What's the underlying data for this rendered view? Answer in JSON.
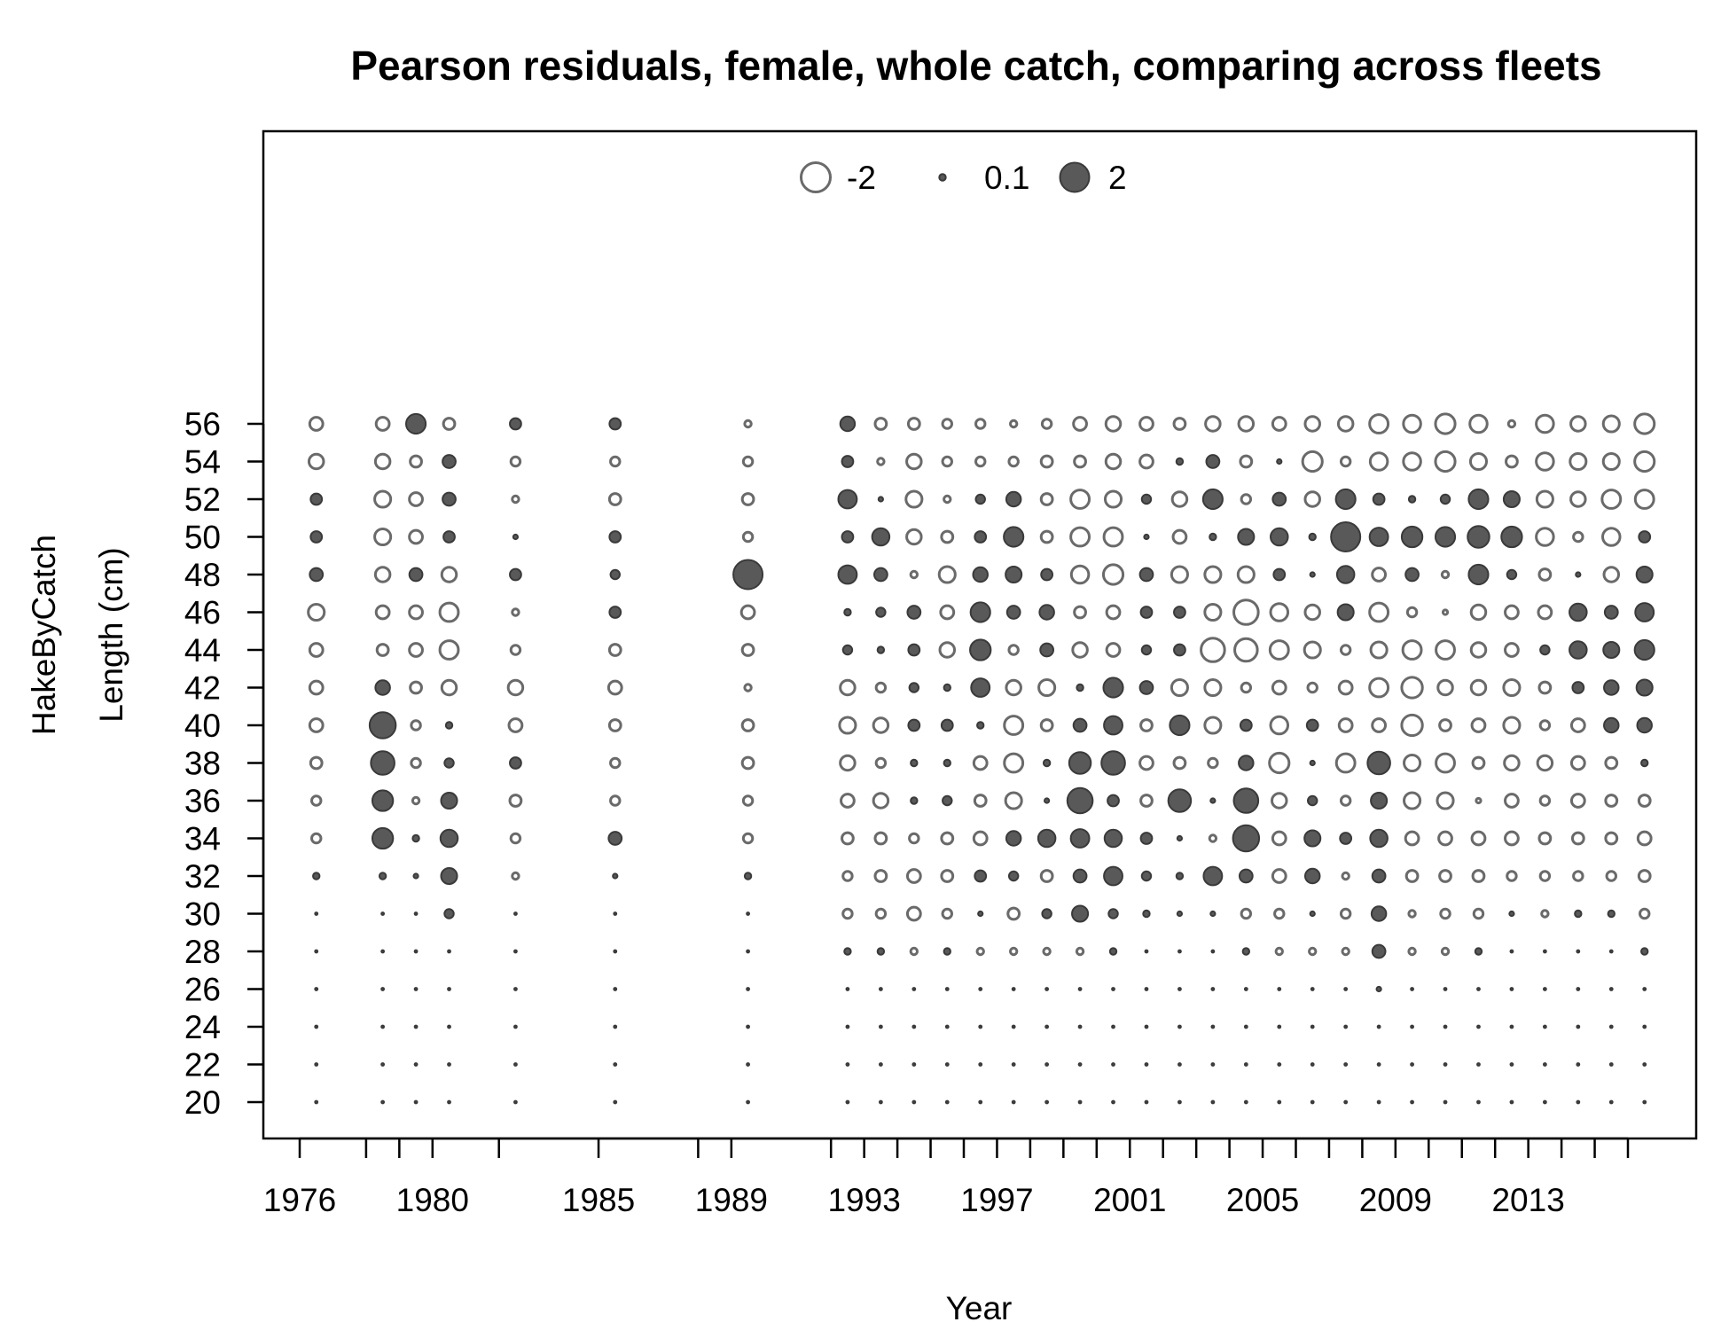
{
  "chart_data": {
    "type": "scatter",
    "subtype": "bubble",
    "title": "Pearson residuals, female, whole catch, comparing across fleets",
    "xlabel": "Year",
    "ylabel_lines": [
      "HakeByCatch",
      "Length (cm)"
    ],
    "xlim": [
      1976,
      2016
    ],
    "ylim": [
      20,
      56
    ],
    "x_ticks": [
      1976,
      1978,
      1979,
      1980,
      1982,
      1985,
      1988,
      1989,
      1992,
      1993,
      1994,
      1995,
      1996,
      1997,
      1998,
      1999,
      2000,
      2001,
      2002,
      2003,
      2004,
      2005,
      2006,
      2007,
      2008,
      2009,
      2010,
      2011,
      2012,
      2013,
      2014,
      2015,
      2016
    ],
    "x_tick_labels": [
      "1976",
      "1980",
      "1985",
      "1989",
      "1993",
      "1997",
      "2001",
      "2005",
      "2009",
      "2013"
    ],
    "y_ticks": [
      20,
      22,
      24,
      26,
      28,
      30,
      32,
      34,
      36,
      38,
      40,
      42,
      44,
      46,
      48,
      50,
      52,
      54,
      56
    ],
    "legend": {
      "position": "top-center",
      "entries": [
        {
          "label": "-2",
          "value": -2
        },
        {
          "label": "0.1",
          "value": 0.1
        },
        {
          "label": "2",
          "value": 2
        }
      ]
    },
    "colors": {
      "positive": "#595959",
      "negative_outline": "#6a6a6a"
    },
    "years": [
      1976.5,
      1978.5,
      1979.5,
      1980.5,
      1982.5,
      1985.5,
      1989.5,
      1992.5,
      1993.5,
      1994.5,
      1995.5,
      1996.5,
      1997.5,
      1998.5,
      1999.5,
      2000.5,
      2001.5,
      2002.5,
      2003.5,
      2004.5,
      2005.5,
      2006.5,
      2007.5,
      2008.5,
      2009.5,
      2010.5,
      2011.5,
      2012.5,
      2013.5,
      2014.5,
      2015.5,
      2016.5
    ],
    "lengths": [
      20,
      22,
      24,
      26,
      28,
      30,
      32,
      34,
      36,
      38,
      40,
      42,
      44,
      46,
      48,
      50,
      52,
      54,
      56
    ],
    "residuals": [
      {
        "year": 1976.5,
        "values": [
          0,
          0,
          0,
          0,
          0,
          0,
          0.1,
          -0.2,
          -0.2,
          -0.3,
          -0.4,
          -0.4,
          -0.4,
          -0.6,
          0.4,
          0.3,
          0.3,
          -0.5,
          -0.4
        ]
      },
      {
        "year": 1978.5,
        "values": [
          0,
          0,
          0,
          0,
          0,
          0,
          0.1,
          1.0,
          1.0,
          1.3,
          1.6,
          0.5,
          -0.3,
          -0.4,
          -0.5,
          -0.6,
          -0.6,
          -0.5,
          -0.4
        ]
      },
      {
        "year": 1979.5,
        "values": [
          0,
          0,
          0,
          0,
          0,
          0,
          0.05,
          0.1,
          -0.1,
          -0.2,
          -0.2,
          -0.3,
          -0.4,
          -0.4,
          0.4,
          -0.4,
          -0.4,
          -0.3,
          0.9
        ]
      },
      {
        "year": 1980.5,
        "values": [
          0,
          0,
          0,
          0,
          0,
          0.2,
          0.6,
          0.7,
          0.6,
          0.2,
          0.1,
          -0.5,
          -0.8,
          -0.8,
          -0.5,
          0.3,
          0.4,
          0.4,
          -0.3
        ]
      },
      {
        "year": 1982.5,
        "values": [
          0,
          0,
          0,
          0,
          0,
          0,
          -0.1,
          -0.2,
          -0.3,
          0.3,
          -0.4,
          -0.5,
          -0.2,
          -0.1,
          0.3,
          0.05,
          -0.1,
          -0.2,
          0.3
        ]
      },
      {
        "year": 1985.5,
        "values": [
          0,
          0,
          0,
          0,
          0,
          0,
          0.05,
          0.4,
          -0.2,
          -0.2,
          -0.3,
          -0.4,
          -0.3,
          0.3,
          0.2,
          0.3,
          -0.3,
          -0.2,
          0.3
        ]
      },
      {
        "year": 1989.5,
        "values": [
          0,
          0,
          0,
          0,
          0,
          0,
          0.1,
          -0.2,
          -0.2,
          -0.3,
          -0.3,
          -0.1,
          -0.3,
          -0.4,
          2.0,
          -0.2,
          -0.3,
          -0.2,
          -0.1
        ]
      },
      {
        "year": 1992.5,
        "values": [
          0,
          0,
          0,
          0,
          0.1,
          -0.2,
          -0.2,
          -0.3,
          -0.4,
          -0.5,
          -0.6,
          -0.5,
          0.2,
          0.1,
          0.8,
          0.3,
          0.8,
          0.3,
          0.5
        ]
      },
      {
        "year": 1993.5,
        "values": [
          0,
          0,
          0,
          0,
          0.1,
          -0.2,
          -0.3,
          -0.3,
          -0.5,
          -0.2,
          -0.5,
          -0.2,
          0.1,
          0.2,
          0.4,
          0.7,
          0.05,
          -0.1,
          -0.3
        ]
      },
      {
        "year": 1994.5,
        "values": [
          0,
          0,
          0,
          0,
          -0.1,
          -0.4,
          -0.4,
          -0.2,
          0.1,
          0.1,
          0.3,
          0.2,
          0.3,
          0.4,
          -0.1,
          -0.5,
          -0.6,
          -0.5,
          -0.3
        ]
      },
      {
        "year": 1995.5,
        "values": [
          0,
          0,
          0,
          0,
          0.1,
          -0.2,
          -0.3,
          -0.3,
          0.2,
          0.1,
          0.3,
          0.1,
          -0.5,
          -0.4,
          -0.6,
          -0.3,
          -0.1,
          -0.2,
          -0.2
        ]
      },
      {
        "year": 1996.5,
        "values": [
          0,
          0,
          0,
          0,
          -0.1,
          0.05,
          0.3,
          -0.4,
          -0.3,
          -0.4,
          0.1,
          0.8,
          1.0,
          0.9,
          0.5,
          0.3,
          0.2,
          -0.2,
          -0.2
        ]
      },
      {
        "year": 1997.5,
        "values": [
          0,
          0,
          0,
          0,
          -0.1,
          -0.3,
          0.2,
          0.5,
          -0.6,
          -0.8,
          -0.8,
          -0.5,
          -0.2,
          0.4,
          0.6,
          0.9,
          0.5,
          -0.2,
          -0.1
        ]
      },
      {
        "year": 1998.5,
        "values": [
          0,
          0,
          0,
          0,
          -0.1,
          0.2,
          -0.3,
          0.7,
          0.05,
          0.1,
          -0.3,
          -0.6,
          0.4,
          0.5,
          0.3,
          -0.3,
          -0.3,
          -0.3,
          -0.2
        ]
      },
      {
        "year": 1999.5,
        "values": [
          0,
          0,
          0,
          0,
          -0.1,
          0.6,
          0.4,
          0.8,
          1.5,
          1.1,
          0.4,
          0.1,
          -0.5,
          -0.3,
          -0.7,
          -0.8,
          -0.8,
          -0.3,
          -0.4
        ]
      },
      {
        "year": 2000.5,
        "values": [
          0,
          0,
          0,
          0,
          0.1,
          0.2,
          0.8,
          0.7,
          0.3,
          1.3,
          0.8,
          0.9,
          -0.4,
          -0.4,
          -0.9,
          -0.8,
          -0.6,
          -0.5,
          -0.5
        ]
      },
      {
        "year": 2001.5,
        "values": [
          0,
          0,
          0,
          0,
          0,
          0.1,
          0.2,
          0.3,
          -0.3,
          -0.4,
          -0.3,
          0.4,
          0.2,
          0.3,
          0.4,
          0.05,
          0.2,
          -0.4,
          -0.4
        ]
      },
      {
        "year": 2002.5,
        "values": [
          0,
          0,
          0,
          0,
          0,
          0.05,
          0.1,
          0.05,
          1.2,
          -0.3,
          0.9,
          -0.6,
          0.3,
          0.3,
          -0.6,
          -0.4,
          -0.5,
          0.1,
          -0.3
        ]
      },
      {
        "year": 2003.5,
        "values": [
          0,
          0,
          0,
          0,
          0,
          0.05,
          0.8,
          -0.1,
          0.05,
          -0.2,
          -0.6,
          -0.6,
          -1.3,
          -0.6,
          -0.6,
          0.1,
          0.9,
          0.4,
          -0.5
        ]
      },
      {
        "year": 2004.5,
        "values": [
          0,
          0,
          0,
          0,
          0.1,
          -0.2,
          0.4,
          1.6,
          1.4,
          0.5,
          0.3,
          -0.2,
          -1.2,
          -1.4,
          -0.6,
          0.6,
          -0.2,
          -0.3,
          -0.5
        ]
      },
      {
        "year": 2005.5,
        "values": [
          0,
          0,
          0,
          0,
          -0.1,
          -0.2,
          -0.4,
          -0.4,
          -0.5,
          -0.9,
          -0.7,
          -0.4,
          -0.8,
          -0.7,
          0.3,
          0.7,
          0.4,
          0.05,
          -0.4
        ]
      },
      {
        "year": 2006.5,
        "values": [
          0,
          0,
          0,
          0,
          -0.1,
          0.05,
          0.5,
          0.6,
          0.2,
          0.05,
          0.3,
          -0.2,
          -0.6,
          -0.5,
          0.05,
          0.1,
          -0.5,
          -0.9,
          -0.5
        ]
      },
      {
        "year": 2007.5,
        "values": [
          0,
          0,
          0,
          0,
          -0.1,
          -0.2,
          -0.1,
          0.3,
          -0.2,
          -0.8,
          -0.4,
          -0.4,
          -0.2,
          0.6,
          0.7,
          2.0,
          0.9,
          -0.2,
          -0.5
        ]
      },
      {
        "year": 2008.5,
        "values": [
          0,
          0,
          0,
          0.05,
          0.4,
          0.5,
          0.4,
          0.7,
          0.6,
          1.2,
          -0.4,
          -0.8,
          -0.6,
          -0.8,
          -0.4,
          0.8,
          0.3,
          -0.7,
          -0.8
        ]
      },
      {
        "year": 2009.5,
        "values": [
          0,
          0,
          0,
          0,
          -0.1,
          -0.1,
          -0.3,
          -0.4,
          -0.6,
          -0.6,
          -1.0,
          -1.0,
          -0.8,
          -0.2,
          0.4,
          1.0,
          0.1,
          -0.7,
          -0.7
        ]
      },
      {
        "year": 2010.5,
        "values": [
          0,
          0,
          0,
          0,
          -0.1,
          -0.2,
          -0.3,
          -0.4,
          -0.6,
          -0.8,
          -0.3,
          -0.5,
          -0.8,
          -0.05,
          -0.1,
          0.9,
          0.2,
          -0.9,
          -0.9
        ]
      },
      {
        "year": 2011.5,
        "values": [
          0,
          0,
          0,
          0,
          0.1,
          -0.2,
          -0.3,
          -0.4,
          -0.05,
          -0.3,
          -0.4,
          -0.5,
          -0.5,
          -0.5,
          0.9,
          1.1,
          0.9,
          -0.6,
          -0.7
        ]
      },
      {
        "year": 2012.5,
        "values": [
          0,
          0,
          0,
          0,
          0,
          0.05,
          -0.2,
          -0.4,
          -0.4,
          -0.5,
          -0.6,
          -0.6,
          -0.4,
          -0.4,
          0.2,
          1.0,
          0.6,
          -0.3,
          -0.1
        ]
      },
      {
        "year": 2013.5,
        "values": [
          0,
          0,
          0,
          0,
          0,
          -0.1,
          -0.2,
          -0.3,
          -0.2,
          -0.5,
          -0.2,
          -0.3,
          0.2,
          -0.4,
          -0.3,
          -0.7,
          -0.6,
          -0.7,
          -0.7
        ]
      },
      {
        "year": 2014.5,
        "values": [
          0,
          0,
          0,
          0,
          0,
          0.1,
          -0.2,
          -0.3,
          -0.4,
          -0.4,
          -0.4,
          0.3,
          0.7,
          0.7,
          0.05,
          -0.2,
          -0.5,
          -0.6,
          -0.5
        ]
      },
      {
        "year": 2015.5,
        "values": [
          0,
          0,
          0,
          0,
          0,
          0.1,
          -0.2,
          -0.3,
          -0.3,
          -0.3,
          0.5,
          0.5,
          0.6,
          0.4,
          -0.5,
          -0.7,
          -0.8,
          -0.6,
          -0.6
        ]
      },
      {
        "year": 2016.5,
        "values": [
          0,
          0,
          0,
          0,
          0.1,
          -0.2,
          -0.3,
          -0.4,
          -0.3,
          0.1,
          0.5,
          0.6,
          0.9,
          0.8,
          0.6,
          0.3,
          -0.8,
          -0.9,
          -0.9
        ]
      }
    ]
  }
}
